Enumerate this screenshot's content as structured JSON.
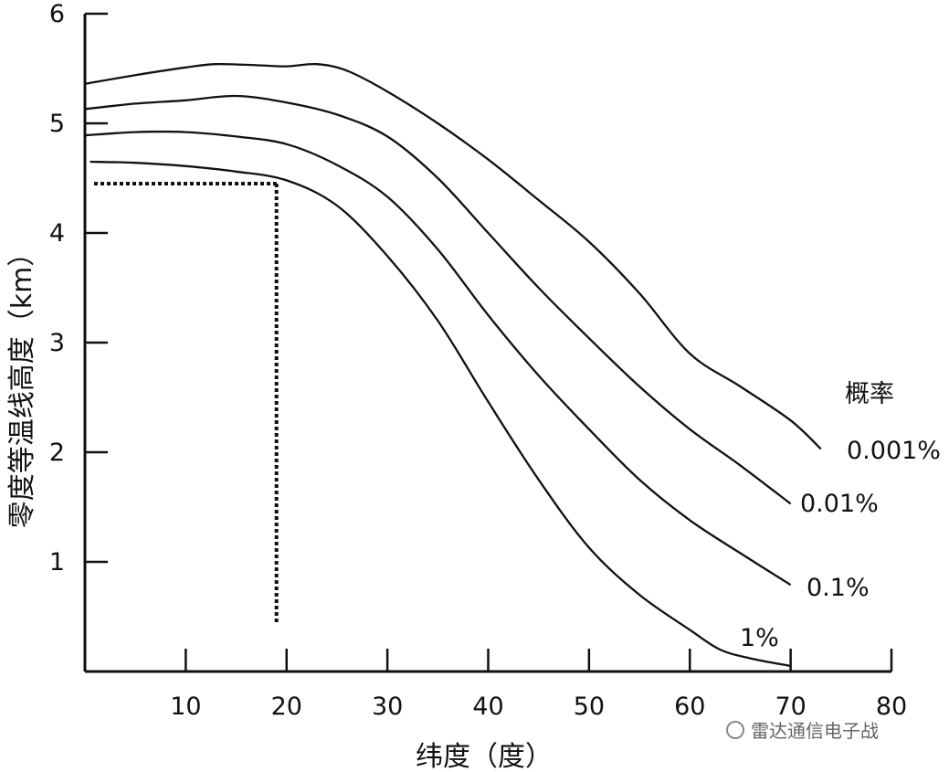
{
  "chart_data": {
    "type": "line",
    "title": "",
    "xlabel": "纬度（度）",
    "ylabel": "零度等温线高度（km）",
    "xlim": [
      0,
      80
    ],
    "ylim": [
      0,
      6
    ],
    "xticks": [
      10,
      20,
      30,
      40,
      50,
      60,
      70,
      80
    ],
    "yticks": [
      1,
      2,
      3,
      4,
      5,
      6
    ],
    "legend_title": "概率",
    "grid": false,
    "series": [
      {
        "name": "0.001%",
        "x": [
          0,
          5,
          10,
          13,
          17,
          20,
          23,
          26,
          30,
          35,
          40,
          45,
          50,
          55,
          60,
          65,
          70,
          73
        ],
        "y": [
          5.36,
          5.44,
          5.51,
          5.54,
          5.53,
          5.52,
          5.54,
          5.48,
          5.29,
          5.0,
          4.67,
          4.3,
          3.92,
          3.45,
          2.9,
          2.6,
          2.29,
          2.03
        ]
      },
      {
        "name": "0.01%",
        "x": [
          0,
          5,
          10,
          15,
          20,
          25,
          30,
          35,
          40,
          45,
          50,
          55,
          60,
          65,
          70
        ],
        "y": [
          5.13,
          5.18,
          5.21,
          5.25,
          5.19,
          5.08,
          4.88,
          4.5,
          4.0,
          3.5,
          3.04,
          2.6,
          2.21,
          1.88,
          1.53
        ]
      },
      {
        "name": "0.1%",
        "x": [
          0,
          5,
          10,
          15,
          20,
          25,
          30,
          35,
          40,
          45,
          50,
          55,
          60,
          65,
          70
        ],
        "y": [
          4.89,
          4.92,
          4.92,
          4.88,
          4.81,
          4.62,
          4.33,
          3.85,
          3.25,
          2.7,
          2.21,
          1.75,
          1.38,
          1.08,
          0.79
        ]
      },
      {
        "name": "1%",
        "x": [
          0.5,
          5,
          10,
          15,
          20,
          25,
          30,
          35,
          40,
          45,
          50,
          55,
          60,
          63,
          66,
          70
        ],
        "y": [
          4.65,
          4.64,
          4.61,
          4.56,
          4.48,
          4.25,
          3.79,
          3.2,
          2.46,
          1.75,
          1.13,
          0.7,
          0.38,
          0.2,
          0.12,
          0.05
        ]
      }
    ],
    "annotation": {
      "type": "dotted-guide",
      "x": 19,
      "y": 4.45,
      "y_bottom": 0.45
    }
  },
  "watermark": "雷达通信电子战"
}
